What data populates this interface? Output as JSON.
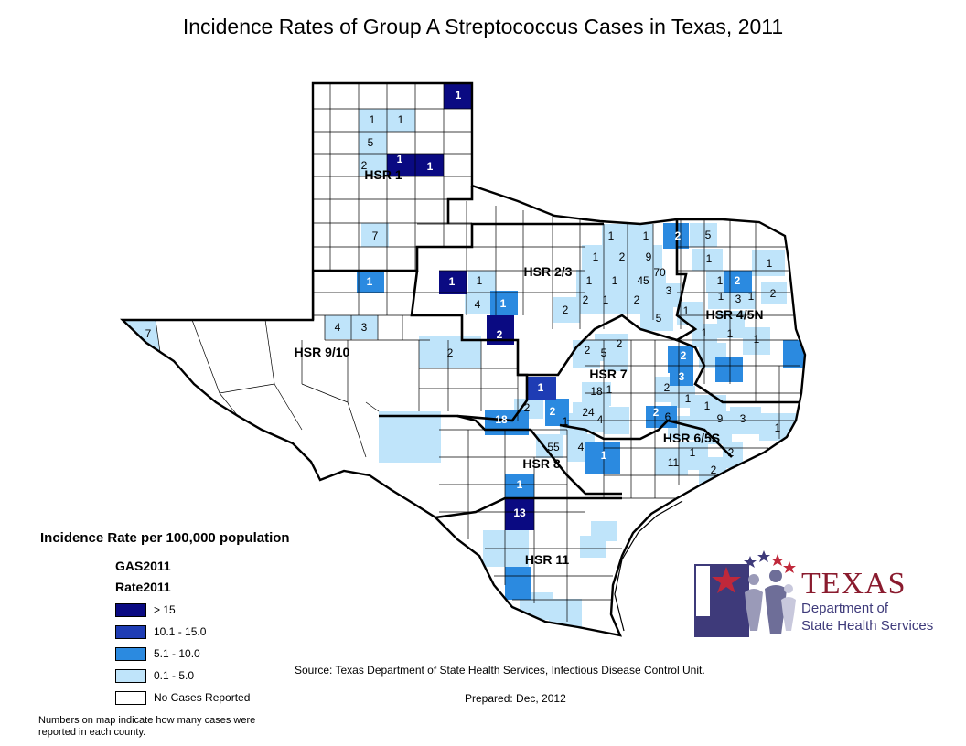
{
  "title": "Incidence Rates of Group A Streptococcus Cases in Texas, 2011",
  "legend": {
    "title": "Incidence Rate per 100,000 population",
    "layer": "GAS2011",
    "field": "Rate2011",
    "classes": [
      {
        "label": "> 15",
        "color": "#0a0a82"
      },
      {
        "label": "10.1 - 15.0",
        "color": "#1e3cb4"
      },
      {
        "label": "5.1 - 10.0",
        "color": "#2b8ae0"
      },
      {
        "label": "0.1 - 5.0",
        "color": "#bfe4fa"
      },
      {
        "label": "No Cases Reported",
        "color": "#ffffff"
      }
    ]
  },
  "note": "Numbers on map indicate how many cases were reported in each county.",
  "source": "Source: Texas Department of State Health Services, Infectious Disease Control Unit.",
  "prepared": "Prepared: Dec, 2012",
  "logo": {
    "line1": "TEXAS",
    "line2": "Department of",
    "line3": "State Health Services"
  },
  "regions": [
    "HSR 1",
    "HSR 2/3",
    "HSR 4/5N",
    "HSR 9/10",
    "HSR 7",
    "HSR 6/5S",
    "HSR 8",
    "HSR 11"
  ],
  "county_counts": [
    "1",
    "1",
    "1",
    "5",
    "1",
    "1",
    "2",
    "7",
    "1",
    "1",
    "1",
    "4",
    "1",
    "2",
    "4",
    "3",
    "7",
    "2",
    "1",
    "1",
    "2",
    "1",
    "2",
    "9",
    "5",
    "1",
    "1",
    "45",
    "70",
    "3",
    "2",
    "2",
    "1",
    "2",
    "5",
    "1",
    "3",
    "1",
    "2",
    "1",
    "1",
    "1",
    "2",
    "1",
    "1",
    "1",
    "1",
    "2",
    "5",
    "2",
    "2",
    "18",
    "1",
    "3",
    "1",
    "24",
    "4",
    "2",
    "1",
    "2",
    "18",
    "2",
    "1",
    "55",
    "4",
    "1",
    "2",
    "6",
    "9",
    "3",
    "1",
    "1",
    "1",
    "2",
    "11",
    "2",
    "1",
    "13"
  ]
}
